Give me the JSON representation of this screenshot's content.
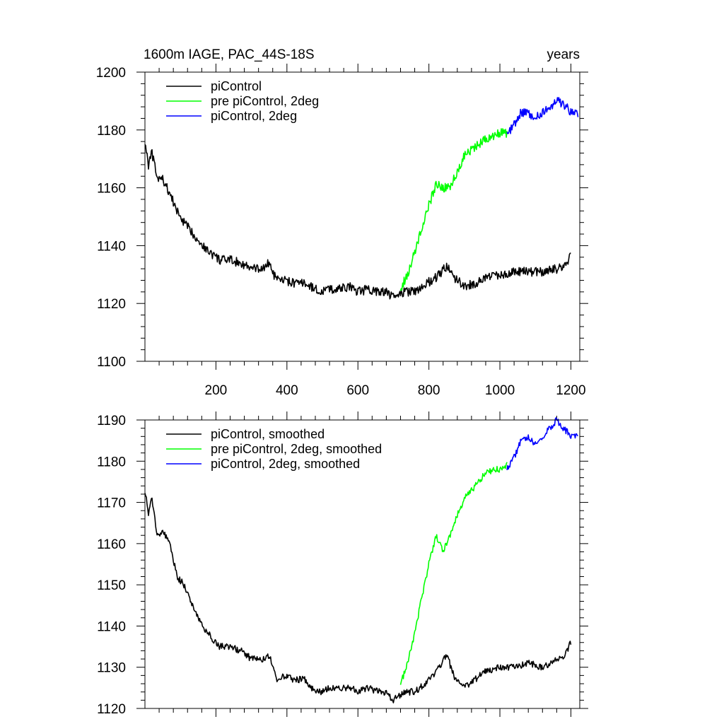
{
  "chart_data": [
    {
      "type": "line",
      "title_left": "1600m IAGE, PAC_44S-18S",
      "title_right": "years",
      "xlabel": "",
      "ylabel": "",
      "xlim": [
        0,
        1225
      ],
      "ylim": [
        1100,
        1200
      ],
      "x_ticks": [
        200,
        400,
        600,
        800,
        1000,
        1200
      ],
      "x_tick_labels": [
        "200",
        "400",
        "600",
        "800",
        "1000",
        "1200"
      ],
      "y_ticks": [
        1100,
        1120,
        1140,
        1160,
        1180,
        1200
      ],
      "y_tick_labels": [
        "1100",
        "1120",
        "1140",
        "1160",
        "1180",
        "1200"
      ],
      "legend_position": "top-left",
      "series": [
        {
          "name": "piControl",
          "color": "#000000",
          "x": [
            0,
            10,
            20,
            35,
            50,
            70,
            90,
            110,
            130,
            150,
            170,
            190,
            210,
            240,
            270,
            300,
            330,
            350,
            370,
            390,
            420,
            450,
            480,
            500,
            520,
            550,
            580,
            600,
            630,
            660,
            680,
            700,
            730,
            760,
            790,
            810,
            830,
            850,
            870,
            900,
            930,
            960,
            1000,
            1040,
            1080,
            1120,
            1160,
            1185,
            1200
          ],
          "y": [
            1176,
            1168,
            1172,
            1163,
            1163,
            1158,
            1152,
            1148,
            1145,
            1142,
            1139,
            1137,
            1135,
            1135,
            1134,
            1132,
            1132,
            1134,
            1128,
            1128,
            1127,
            1127,
            1125,
            1124,
            1125,
            1125,
            1126,
            1124,
            1125,
            1124,
            1124,
            1122,
            1124,
            1124,
            1127,
            1128,
            1130,
            1133,
            1129,
            1126,
            1127,
            1129,
            1130,
            1131,
            1131,
            1131,
            1132,
            1133,
            1137
          ]
        },
        {
          "name": "pre piControl, 2deg",
          "color": "#00ff00",
          "x": [
            720,
            740,
            760,
            780,
            800,
            820,
            840,
            860,
            880,
            900,
            920,
            940,
            960,
            980,
            1000,
            1020
          ],
          "y": [
            1125,
            1130,
            1138,
            1146,
            1154,
            1161,
            1160,
            1160,
            1166,
            1171,
            1173,
            1175,
            1177,
            1178,
            1179,
            1179
          ]
        },
        {
          "name": "piControl, 2deg",
          "color": "#0000ff",
          "x": [
            1020,
            1040,
            1060,
            1080,
            1100,
            1120,
            1140,
            1160,
            1180,
            1200,
            1220
          ],
          "y": [
            1178,
            1182,
            1186,
            1186,
            1184,
            1186,
            1188,
            1190,
            1189,
            1186,
            1186
          ]
        }
      ]
    },
    {
      "type": "line",
      "xlabel": "",
      "ylabel": "",
      "xlim": [
        0,
        1225
      ],
      "ylim": [
        1120,
        1190
      ],
      "x_ticks": [
        200,
        400,
        600,
        800,
        1000,
        1200
      ],
      "y_ticks": [
        1120,
        1130,
        1140,
        1150,
        1160,
        1170,
        1180,
        1190
      ],
      "y_tick_labels": [
        "1120",
        "1130",
        "1140",
        "1150",
        "1160",
        "1170",
        "1180",
        "1190"
      ],
      "legend_position": "top-left",
      "series": [
        {
          "name": "piControl, smoothed",
          "color": "#000000",
          "x": [
            0,
            10,
            20,
            35,
            50,
            70,
            90,
            110,
            130,
            150,
            170,
            190,
            210,
            240,
            270,
            300,
            330,
            350,
            370,
            390,
            420,
            450,
            480,
            500,
            520,
            550,
            580,
            600,
            630,
            660,
            680,
            700,
            730,
            760,
            790,
            810,
            830,
            850,
            870,
            900,
            930,
            960,
            1000,
            1040,
            1080,
            1120,
            1160,
            1185,
            1200
          ],
          "y": [
            1173,
            1167,
            1171,
            1162,
            1163,
            1160,
            1152,
            1150,
            1146,
            1142,
            1139,
            1137,
            1135,
            1135,
            1134,
            1132,
            1132,
            1133,
            1127,
            1128,
            1127,
            1127,
            1124,
            1124,
            1125,
            1125,
            1125,
            1124,
            1125,
            1124,
            1124,
            1122,
            1124,
            1124,
            1126,
            1128,
            1130,
            1133,
            1128,
            1125,
            1127,
            1129,
            1130,
            1130,
            1131,
            1130,
            1132,
            1133,
            1136
          ]
        },
        {
          "name": "pre piControl, 2deg, smoothed",
          "color": "#00ff00",
          "x": [
            720,
            740,
            760,
            780,
            800,
            820,
            840,
            860,
            880,
            900,
            920,
            940,
            960,
            980,
            1000,
            1020
          ],
          "y": [
            1126,
            1131,
            1138,
            1147,
            1155,
            1162,
            1158,
            1162,
            1167,
            1171,
            1173,
            1175,
            1177,
            1178,
            1178,
            1179
          ]
        },
        {
          "name": "piControl, 2deg, smoothed",
          "color": "#0000ff",
          "x": [
            1020,
            1040,
            1060,
            1080,
            1100,
            1120,
            1140,
            1160,
            1180,
            1200,
            1220
          ],
          "y": [
            1178,
            1181,
            1185,
            1186,
            1184,
            1186,
            1188,
            1190,
            1188,
            1186,
            1186
          ]
        }
      ]
    }
  ]
}
